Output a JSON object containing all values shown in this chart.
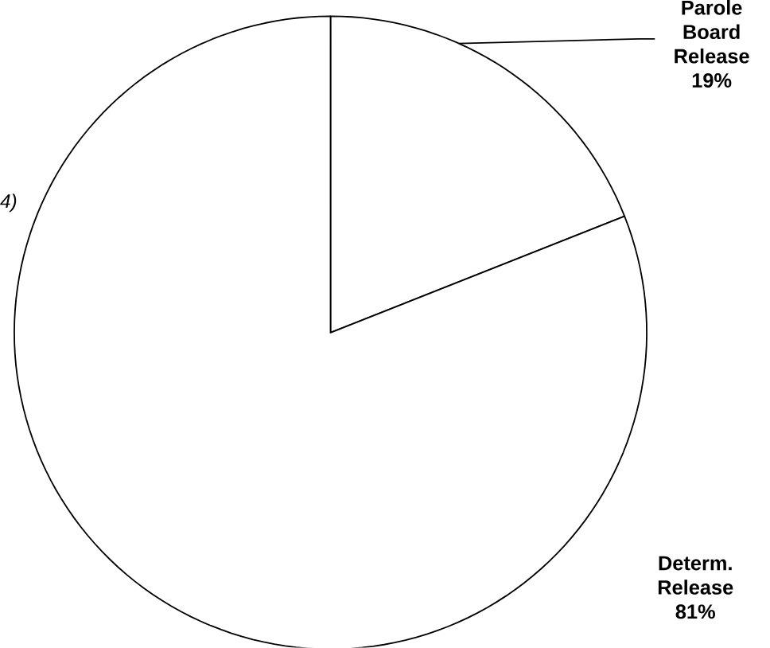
{
  "chart_data": {
    "type": "pie",
    "categories": [
      "Parole Board Release",
      "Determ. Release"
    ],
    "values": [
      19,
      81
    ],
    "colors": [
      "#ffffff",
      "#ffffff"
    ],
    "value_labels": [
      "19%",
      "81%"
    ],
    "annotations": [
      "4)"
    ]
  }
}
